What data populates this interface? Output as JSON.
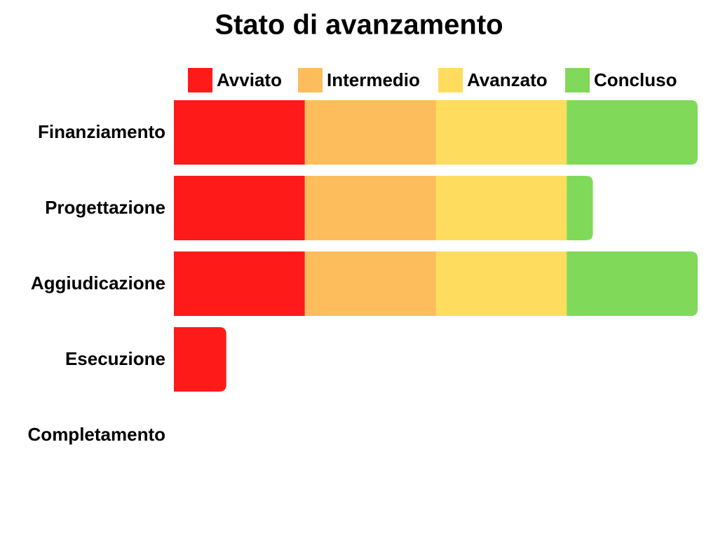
{
  "chart_data": {
    "type": "stacked-barh",
    "title": "Stato di avanzamento",
    "categories": [
      "Finanziamento",
      "Progettazione",
      "Aggiudicazione",
      "Esecuzione",
      "Completamento"
    ],
    "series": [
      {
        "name": "Avviato",
        "color": "#ff1a1a",
        "values": [
          25,
          25,
          25,
          10,
          0
        ]
      },
      {
        "name": "Intermedio",
        "color": "#fdbd5c",
        "values": [
          25,
          25,
          25,
          0,
          0
        ]
      },
      {
        "name": "Avanzato",
        "color": "#fedc5d",
        "values": [
          25,
          25,
          25,
          0,
          0
        ]
      },
      {
        "name": "Concluso",
        "color": "#80d958",
        "values": [
          25,
          5,
          25,
          0,
          0
        ]
      }
    ],
    "xlim": [
      0,
      100
    ]
  }
}
